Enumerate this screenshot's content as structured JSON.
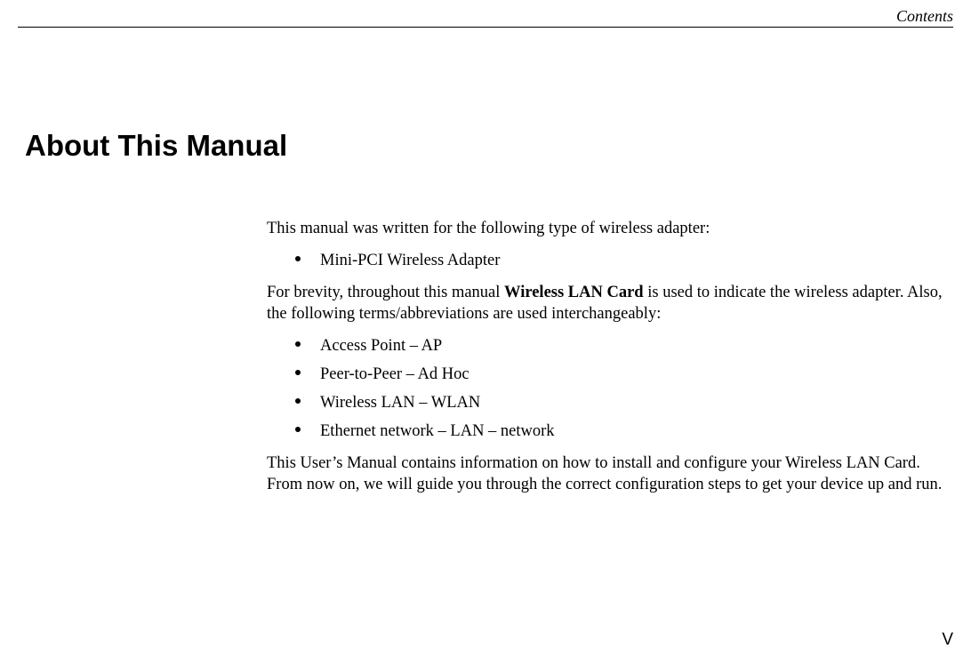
{
  "header": {
    "label": "Contents"
  },
  "title": "About This Manual",
  "intro": "This manual was written for the following type of wireless adapter:",
  "adapter_list": [
    "Mini-PCI Wireless Adapter"
  ],
  "brevity_before": "For brevity, throughout this manual ",
  "brevity_bold": "Wireless LAN Card",
  "brevity_after": " is used to indicate the wireless adapter. Also, the following terms/abbreviations are used interchangeably:",
  "terms_list": [
    "Access Point – AP",
    "Peer-to-Peer – Ad Hoc",
    "Wireless LAN – WLAN",
    "Ethernet network – LAN – network"
  ],
  "closing": "This User’s Manual contains information on how to install and configure your Wireless LAN Card. From now on, we will guide you through the correct configuration steps to get your device up and run.",
  "page_number": "V",
  "colors": {
    "text": "#000000",
    "background": "#ffffff"
  },
  "typography": {
    "body_font": "Times New Roman",
    "title_font": "Arial",
    "title_size_pt": 25,
    "body_size_pt": 14
  }
}
